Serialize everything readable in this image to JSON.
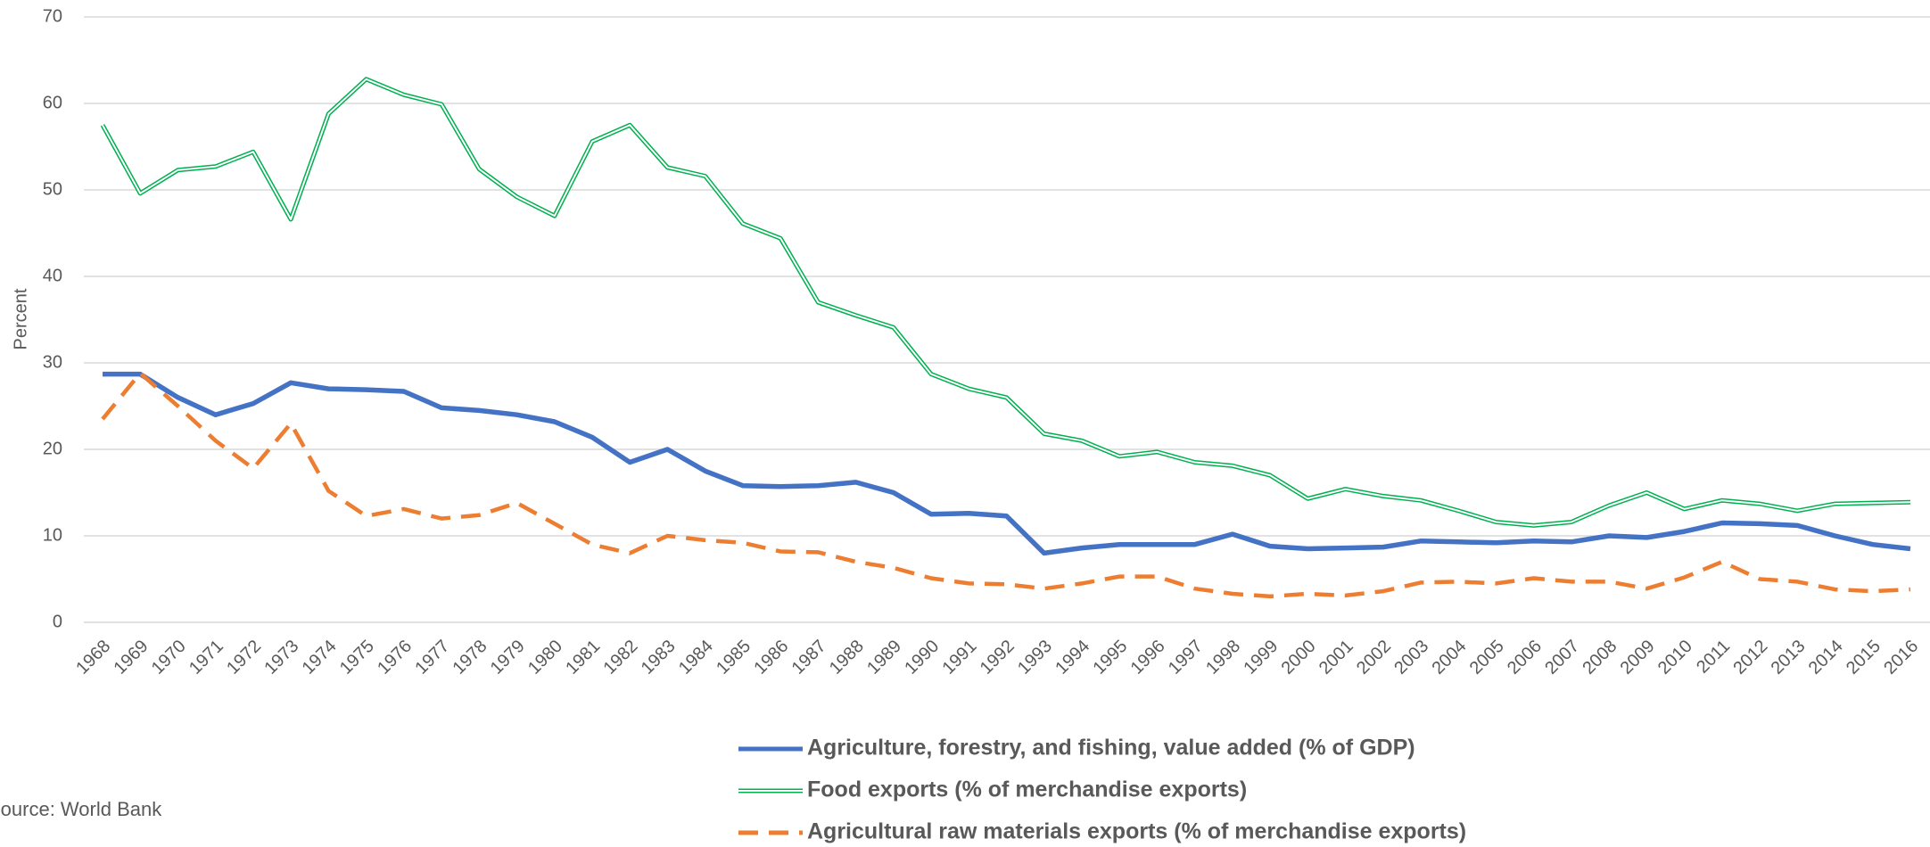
{
  "chart_data": {
    "type": "line",
    "y_label": "Percent",
    "source": "Source: World Bank",
    "categories": [
      "1968",
      "1969",
      "1970",
      "1971",
      "1972",
      "1973",
      "1974",
      "1975",
      "1976",
      "1977",
      "1978",
      "1979",
      "1980",
      "1981",
      "1982",
      "1983",
      "1984",
      "1985",
      "1986",
      "1987",
      "1988",
      "1989",
      "1990",
      "1991",
      "1992",
      "1993",
      "1994",
      "1995",
      "1996",
      "1997",
      "1998",
      "1999",
      "2000",
      "2001",
      "2002",
      "2003",
      "2004",
      "2005",
      "2006",
      "2007",
      "2008",
      "2009",
      "2010",
      "2011",
      "2012",
      "2013",
      "2014",
      "2015",
      "2016"
    ],
    "series": [
      {
        "name": "Agriculture, forestry, and fishing, value added (% of GDP)",
        "color": "#4472c4",
        "style": "solid",
        "values": [
          28.7,
          28.7,
          26,
          24,
          25.3,
          27.7,
          27,
          26.9,
          26.7,
          24.8,
          24.5,
          24,
          23.2,
          21.4,
          18.5,
          20,
          17.5,
          15.8,
          15.7,
          15.8,
          16.2,
          15,
          12.5,
          12.6,
          12.3,
          8,
          8.6,
          9,
          9,
          9,
          10.2,
          8.8,
          8.5,
          8.6,
          8.7,
          9.4,
          9.3,
          9.2,
          9.4,
          9.3,
          10,
          9.8,
          10.5,
          11.5,
          11.4,
          11.2,
          10,
          9,
          8.5
        ]
      },
      {
        "name": "Food exports (% of merchandise exports)",
        "color": "#00b050",
        "style": "double",
        "values": [
          57.5,
          49.6,
          52.3,
          52.7,
          54.4,
          46.6,
          58.8,
          62.8,
          61,
          59.9,
          52.4,
          49.2,
          47,
          55.6,
          57.5,
          52.6,
          51.6,
          46.1,
          44.4,
          37,
          35.5,
          34.1,
          28.7,
          27,
          26,
          21.8,
          21,
          19.2,
          19.7,
          18.5,
          18.1,
          17,
          14.3,
          15.4,
          14.6,
          14.1,
          12.9,
          11.6,
          11.2,
          11.6,
          13.5,
          15,
          13.1,
          14.1,
          13.7,
          12.9,
          13.7,
          13.8,
          13.9
        ]
      },
      {
        "name": "Agricultural raw materials exports (% of merchandise exports)",
        "color": "#ed7d31",
        "style": "dashed",
        "values": [
          23.5,
          28.8,
          25,
          21,
          17.8,
          23,
          15.2,
          12.3,
          13.1,
          12,
          12.4,
          13.8,
          11.4,
          9,
          8,
          10,
          9.5,
          9.2,
          8.2,
          8.1,
          7,
          6.3,
          5.1,
          4.5,
          4.4,
          3.9,
          4.5,
          5.3,
          5.3,
          3.9,
          3.3,
          3,
          3.3,
          3.1,
          3.6,
          4.6,
          4.7,
          4.5,
          5.1,
          4.7,
          4.7,
          3.9,
          5.2,
          7,
          5,
          4.7,
          3.8,
          3.6,
          3.8
        ]
      }
    ],
    "ylim": [
      0,
      70
    ],
    "yticks": [
      0,
      10,
      20,
      30,
      40,
      50,
      60,
      70
    ],
    "grid": true
  }
}
